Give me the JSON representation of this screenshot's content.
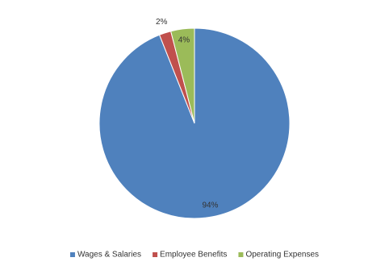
{
  "chart_data": {
    "type": "pie",
    "categories": [
      "Wages & Salaries",
      "Employee Benefits",
      "Operating Expenses"
    ],
    "values": [
      94,
      2,
      4
    ],
    "value_labels": [
      "94%",
      "2%",
      "4%"
    ],
    "colors": [
      "#4f81bd",
      "#c0504d",
      "#9bbb59"
    ],
    "legend": "bottom"
  }
}
